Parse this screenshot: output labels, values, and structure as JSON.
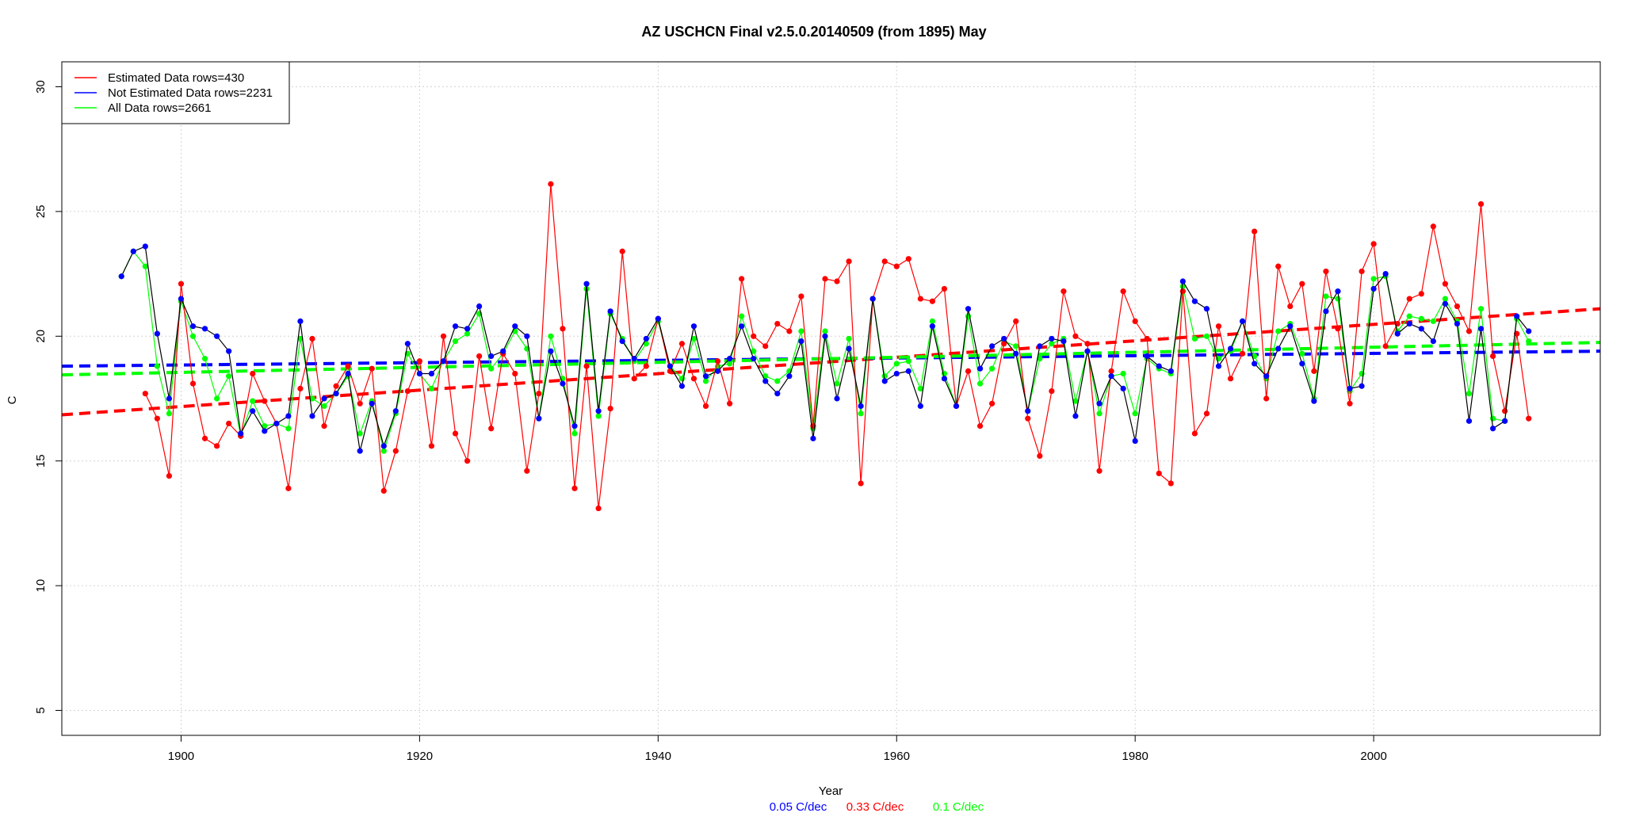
{
  "chart_data": {
    "type": "line",
    "title": "AZ USCHCN Final v2.5.0.20140509 (from 1895) May",
    "xlabel": "Year",
    "ylabel": "C",
    "xlim": [
      1890,
      2019
    ],
    "ylim": [
      4,
      31
    ],
    "x_ticks": [
      1900,
      1920,
      1940,
      1960,
      1980,
      2000
    ],
    "y_ticks": [
      5,
      10,
      15,
      20,
      25,
      30
    ],
    "grid": true,
    "legend_position": "top-left",
    "legend": [
      {
        "label": "Estimated Data rows=430",
        "color": "#ff0000"
      },
      {
        "label": "Not Estimated Data rows=2231",
        "color": "#0000ff"
      },
      {
        "label": "All Data rows=2661",
        "color": "#00ff00"
      }
    ],
    "series": [
      {
        "name": "Estimated Data rows=430",
        "color": "#ff0000",
        "x": [
          1897,
          1898,
          1899,
          1900,
          1901,
          1902,
          1903,
          1904,
          1905,
          1906,
          1907,
          1908,
          1909,
          1910,
          1911,
          1912,
          1913,
          1914,
          1915,
          1916,
          1917,
          1918,
          1919,
          1920,
          1921,
          1922,
          1923,
          1924,
          1925,
          1926,
          1927,
          1928,
          1929,
          1930,
          1931,
          1932,
          1933,
          1934,
          1935,
          1936,
          1937,
          1938,
          1939,
          1940,
          1941,
          1942,
          1943,
          1944,
          1945,
          1946,
          1947,
          1948,
          1949,
          1950,
          1951,
          1952,
          1953,
          1954,
          1955,
          1956,
          1957,
          1958,
          1959,
          1960,
          1961,
          1962,
          1963,
          1964,
          1965,
          1966,
          1967,
          1968,
          1969,
          1970,
          1971,
          1972,
          1973,
          1974,
          1975,
          1976,
          1977,
          1978,
          1979,
          1980,
          1981,
          1982,
          1983,
          1984,
          1985,
          1986,
          1987,
          1988,
          1989,
          1990,
          1991,
          1992,
          1993,
          1994,
          1995,
          1996,
          1997,
          1998,
          1999,
          2000,
          2001,
          2002,
          2003,
          2004,
          2005,
          2006,
          2007,
          2008,
          2009,
          2010,
          2011,
          2012,
          2013
        ],
        "y": [
          17.7,
          16.7,
          14.4,
          22.1,
          18.1,
          15.9,
          15.6,
          16.5,
          16.0,
          18.5,
          17.4,
          16.5,
          13.9,
          17.9,
          19.9,
          16.4,
          18.0,
          18.8,
          17.3,
          18.7,
          13.8,
          15.4,
          17.8,
          19.0,
          15.6,
          20.0,
          16.1,
          15.0,
          19.2,
          16.3,
          19.3,
          18.5,
          14.6,
          17.7,
          26.1,
          20.3,
          13.9,
          18.8,
          13.1,
          17.1,
          23.4,
          18.3,
          18.8,
          20.7,
          18.6,
          19.7,
          18.3,
          17.2,
          19.0,
          17.3,
          22.3,
          20.0,
          19.6,
          20.5,
          20.2,
          21.6,
          16.4,
          22.3,
          22.2,
          23.0,
          14.1,
          21.5,
          23.0,
          22.8,
          23.1,
          21.5,
          21.4,
          21.9,
          17.2,
          18.6,
          16.4,
          17.3,
          19.7,
          20.6,
          16.7,
          15.2,
          17.8,
          21.8,
          20.0,
          19.7,
          14.6,
          18.6,
          21.8,
          20.6,
          19.9,
          14.5,
          14.1,
          21.8,
          16.1,
          16.9,
          20.4,
          18.3,
          19.3,
          24.2,
          17.5,
          22.8,
          21.2,
          22.1,
          18.6,
          22.6,
          20.3,
          17.3,
          22.6,
          23.7,
          19.6,
          20.5,
          21.5,
          21.7,
          24.4,
          22.1,
          21.2,
          20.2,
          25.3,
          19.2,
          17.0,
          20.1,
          16.7
        ]
      },
      {
        "name": "Not Estimated Data rows=2231",
        "color": "#0000ff",
        "x": [
          1895,
          1896,
          1897,
          1898,
          1899,
          1900,
          1901,
          1902,
          1903,
          1904,
          1905,
          1906,
          1907,
          1908,
          1909,
          1910,
          1911,
          1912,
          1913,
          1914,
          1915,
          1916,
          1917,
          1918,
          1919,
          1920,
          1921,
          1922,
          1923,
          1924,
          1925,
          1926,
          1927,
          1928,
          1929,
          1930,
          1931,
          1932,
          1933,
          1934,
          1935,
          1936,
          1937,
          1938,
          1939,
          1940,
          1941,
          1942,
          1943,
          1944,
          1945,
          1946,
          1947,
          1948,
          1949,
          1950,
          1951,
          1952,
          1953,
          1954,
          1955,
          1956,
          1957,
          1958,
          1959,
          1960,
          1961,
          1962,
          1963,
          1964,
          1965,
          1966,
          1967,
          1968,
          1969,
          1970,
          1971,
          1972,
          1973,
          1974,
          1975,
          1976,
          1977,
          1978,
          1979,
          1980,
          1981,
          1982,
          1983,
          1984,
          1985,
          1986,
          1987,
          1988,
          1989,
          1990,
          1991,
          1992,
          1993,
          1994,
          1995,
          1996,
          1997,
          1998,
          1999,
          2000,
          2001,
          2002,
          2003,
          2004,
          2005,
          2006,
          2007,
          2008,
          2009,
          2010,
          2011,
          2012,
          2013
        ],
        "y": [
          22.4,
          23.4,
          23.6,
          20.1,
          17.5,
          21.5,
          20.4,
          20.3,
          20.0,
          19.4,
          16.1,
          17.0,
          16.2,
          16.5,
          16.8,
          20.6,
          16.8,
          17.5,
          17.7,
          18.5,
          15.4,
          17.3,
          15.6,
          17.0,
          19.7,
          18.5,
          18.5,
          19.0,
          20.4,
          20.3,
          21.2,
          19.2,
          19.4,
          20.4,
          20.0,
          16.7,
          19.4,
          18.1,
          16.4,
          22.1,
          17.0,
          21.0,
          19.8,
          19.1,
          19.9,
          20.7,
          18.8,
          18.0,
          20.4,
          18.4,
          18.6,
          19.1,
          20.4,
          19.1,
          18.2,
          17.7,
          18.4,
          19.8,
          15.9,
          20.0,
          17.5,
          19.5,
          17.2,
          21.5,
          18.2,
          18.5,
          18.6,
          17.2,
          20.4,
          18.3,
          17.2,
          21.1,
          18.7,
          19.6,
          19.9,
          19.3,
          17.0,
          19.6,
          19.9,
          19.8,
          16.8,
          19.4,
          17.3,
          18.4,
          17.9,
          15.8,
          19.2,
          18.8,
          18.6,
          22.2,
          21.4,
          21.1,
          18.8,
          19.5,
          20.6,
          18.9,
          18.4,
          19.5,
          20.4,
          18.9,
          17.4,
          21.0,
          21.8,
          17.9,
          18.0,
          21.9,
          22.5,
          20.1,
          20.5,
          20.3,
          19.8,
          21.3,
          20.5,
          16.6,
          20.3,
          16.3,
          16.6,
          20.8,
          20.2
        ]
      },
      {
        "name": "All Data rows=2661",
        "color": "#00ff00",
        "x": [
          1895,
          1896,
          1897,
          1898,
          1899,
          1900,
          1901,
          1902,
          1903,
          1904,
          1905,
          1906,
          1907,
          1908,
          1909,
          1910,
          1911,
          1912,
          1913,
          1914,
          1915,
          1916,
          1917,
          1918,
          1919,
          1920,
          1921,
          1922,
          1923,
          1924,
          1925,
          1926,
          1927,
          1928,
          1929,
          1930,
          1931,
          1932,
          1933,
          1934,
          1935,
          1936,
          1937,
          1938,
          1939,
          1940,
          1941,
          1942,
          1943,
          1944,
          1945,
          1946,
          1947,
          1948,
          1949,
          1950,
          1951,
          1952,
          1953,
          1954,
          1955,
          1956,
          1957,
          1958,
          1959,
          1960,
          1961,
          1962,
          1963,
          1964,
          1965,
          1966,
          1967,
          1968,
          1969,
          1970,
          1971,
          1972,
          1973,
          1974,
          1975,
          1976,
          1977,
          1978,
          1979,
          1980,
          1981,
          1982,
          1983,
          1984,
          1985,
          1986,
          1987,
          1988,
          1989,
          1990,
          1991,
          1992,
          1993,
          1994,
          1995,
          1996,
          1997,
          1998,
          1999,
          2000,
          2001,
          2002,
          2003,
          2004,
          2005,
          2006,
          2007,
          2008,
          2009,
          2010,
          2011,
          2012,
          2013
        ],
        "y": [
          22.4,
          23.4,
          22.8,
          18.8,
          16.9,
          21.4,
          20.0,
          19.1,
          17.5,
          18.4,
          16.0,
          17.4,
          16.4,
          16.5,
          16.3,
          19.9,
          17.5,
          17.2,
          17.7,
          18.4,
          16.1,
          17.4,
          15.4,
          16.9,
          19.3,
          18.5,
          17.9,
          19.0,
          19.8,
          20.1,
          20.9,
          18.7,
          19.3,
          20.2,
          19.5,
          16.7,
          20.0,
          18.3,
          16.1,
          21.9,
          16.8,
          20.9,
          19.9,
          19.0,
          19.7,
          20.6,
          18.8,
          18.3,
          19.9,
          18.2,
          18.8,
          18.9,
          20.8,
          19.4,
          18.4,
          18.2,
          18.6,
          20.2,
          16.3,
          20.2,
          18.1,
          19.9,
          16.9,
          21.5,
          18.4,
          18.9,
          19.0,
          17.9,
          20.6,
          18.5,
          17.2,
          20.8,
          18.1,
          18.7,
          19.8,
          19.6,
          17.0,
          19.1,
          19.7,
          19.9,
          17.4,
          19.4,
          16.9,
          18.4,
          18.5,
          16.9,
          19.1,
          18.7,
          18.5,
          22.0,
          19.9,
          20.0,
          19.1,
          19.4,
          20.6,
          19.2,
          18.3,
          20.2,
          20.5,
          19.3,
          17.5,
          21.6,
          21.5,
          17.8,
          18.5,
          22.3,
          22.4,
          20.2,
          20.8,
          20.7,
          20.6,
          21.5,
          20.6,
          17.7,
          21.1,
          16.7,
          16.6,
          20.7,
          19.8
        ]
      }
    ],
    "trend_lines": [
      {
        "name": "Estimated Data rows=430",
        "color": "#ff0000",
        "x": [
          1890,
          2019
        ],
        "y": [
          16.85,
          21.1
        ]
      },
      {
        "name": "Not Estimated Data rows=2231",
        "color": "#0000ff",
        "x": [
          1890,
          2019
        ],
        "y": [
          18.8,
          19.4
        ]
      },
      {
        "name": "All Data rows=2661",
        "color": "#00ff00",
        "x": [
          1890,
          2019
        ],
        "y": [
          18.45,
          19.75
        ]
      }
    ],
    "trend_labels": [
      {
        "text": "0.05 C/dec",
        "color": "#0000ff"
      },
      {
        "text": "0.33 C/dec",
        "color": "#ff0000"
      },
      {
        "text": "0.1 C/dec",
        "color": "#00ff00"
      }
    ]
  }
}
